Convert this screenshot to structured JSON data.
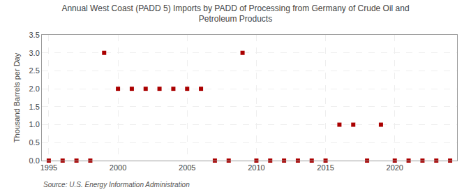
{
  "chart_data": {
    "type": "scatter",
    "title": "Annual West Coast (PADD 5) Imports by PADD of Processing from Germany of Crude Oil and\nPetroleum Products",
    "ylabel": "Thousand Barrels per Day",
    "annotations": [
      "Source: U.S. Energy Information Administration"
    ],
    "x": [
      1995,
      1996,
      1997,
      1998,
      1999,
      2000,
      2001,
      2002,
      2003,
      2004,
      2005,
      2006,
      2007,
      2008,
      2009,
      2010,
      2011,
      2012,
      2013,
      2014,
      2015,
      2016,
      2017,
      2018,
      2019,
      2020,
      2021,
      2022,
      2023,
      2024
    ],
    "values": [
      0,
      0,
      0,
      0,
      3.0,
      2.0,
      2.0,
      2.0,
      2.0,
      2.0,
      2.0,
      2.0,
      0,
      0,
      3.0,
      0,
      0,
      0,
      0,
      0,
      0,
      1.0,
      1.0,
      0,
      1.0,
      0,
      0,
      0,
      0,
      0
    ],
    "color": "#aa0000",
    "marker": "square",
    "xlim": [
      1994.5,
      2024.5
    ],
    "xticks": [
      1995,
      2000,
      2005,
      2010,
      2015,
      2020
    ],
    "ylim": [
      0,
      3.5
    ],
    "yticks": [
      {
        "value": 0.0,
        "label": "0.0"
      },
      0.5,
      {
        "value": 1.0,
        "label": "1.0"
      },
      1.5,
      {
        "value": 2.0,
        "label": "2.0"
      },
      2.5,
      {
        "value": 3.0,
        "label": "3.0"
      },
      3.5
    ],
    "grid": true
  }
}
